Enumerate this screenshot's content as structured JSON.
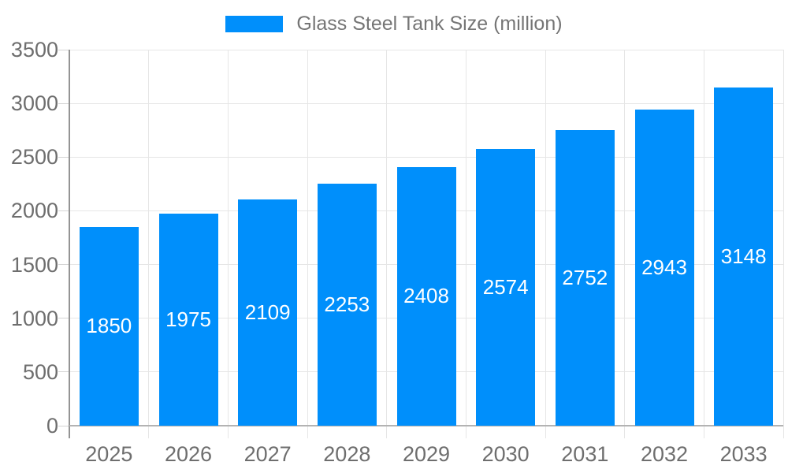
{
  "chart_data": {
    "type": "bar",
    "title": "Glass Steel Tank Size (million)",
    "legend_position": "top",
    "categories": [
      "2025",
      "2026",
      "2027",
      "2028",
      "2029",
      "2030",
      "2031",
      "2032",
      "2033"
    ],
    "series": [
      {
        "name": "Glass Steel Tank Size (million)",
        "values": [
          1850,
          1975,
          2109,
          2253,
          2408,
          2574,
          2752,
          2943,
          3148
        ]
      }
    ],
    "xlabel": "",
    "ylabel": "",
    "ylim": [
      0,
      3500
    ],
    "yticks": [
      0,
      500,
      1000,
      1500,
      2000,
      2500,
      3000,
      3500
    ],
    "grid": true,
    "data_labels": true,
    "colors": {
      "bar": "#008FFB",
      "bar_label": "#ffffff",
      "axis_text": "#6e6e6e",
      "legend_text": "#757575",
      "grid": "#e6e6e6",
      "tick": "#d4d4d4",
      "axis_line_y": "#949494",
      "axis_line_x": "#b3b3b3",
      "background": "#ffffff"
    }
  }
}
